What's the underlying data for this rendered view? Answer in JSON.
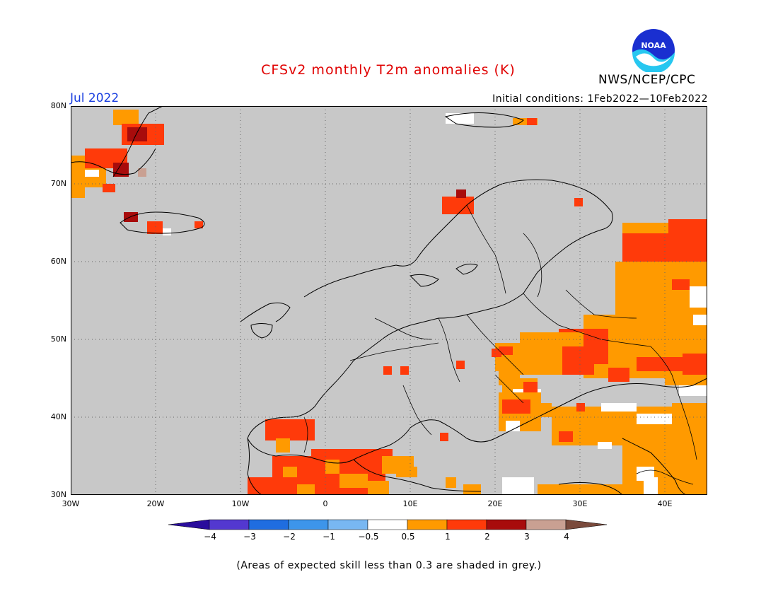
{
  "title": "CFSv2 monthly T2m anomalies (K)",
  "agency": "NWS/NCEP/CPC",
  "logo_text": "NOAA",
  "month_label": "Jul 2022",
  "initial_conditions": "Initial conditions: 1Feb2022—10Feb2022",
  "footnote": "(Areas of expected skill less than 0.3 are shaded in grey.)",
  "axes": {
    "lat_labels": [
      "80N",
      "70N",
      "60N",
      "50N",
      "40N",
      "30N"
    ],
    "lon_labels": [
      "30W",
      "20W",
      "10W",
      "0",
      "10E",
      "20E",
      "30E",
      "40E"
    ],
    "lat_range": [
      30,
      80
    ],
    "lon_range": [
      -30,
      45
    ]
  },
  "colorbar": {
    "labels": [
      "−4",
      "−3",
      "−2",
      "−1",
      "−0.5",
      "0.5",
      "1",
      "2",
      "3",
      "4"
    ],
    "colors": [
      "#2a0d9c",
      "#5338d0",
      "#1f6de0",
      "#3d95ea",
      "#78b7f2",
      "#ffffff",
      "#ff9a00",
      "#ff3a0a",
      "#a80c0c",
      "#c9a092",
      "#7a4a3c"
    ]
  },
  "colors": {
    "grey_mask": "#c8c8c8",
    "positive_small": "#ff9a00",
    "positive_mid": "#ff3a0a",
    "positive_high": "#a80c0c",
    "neutral": "#ffffff"
  }
}
